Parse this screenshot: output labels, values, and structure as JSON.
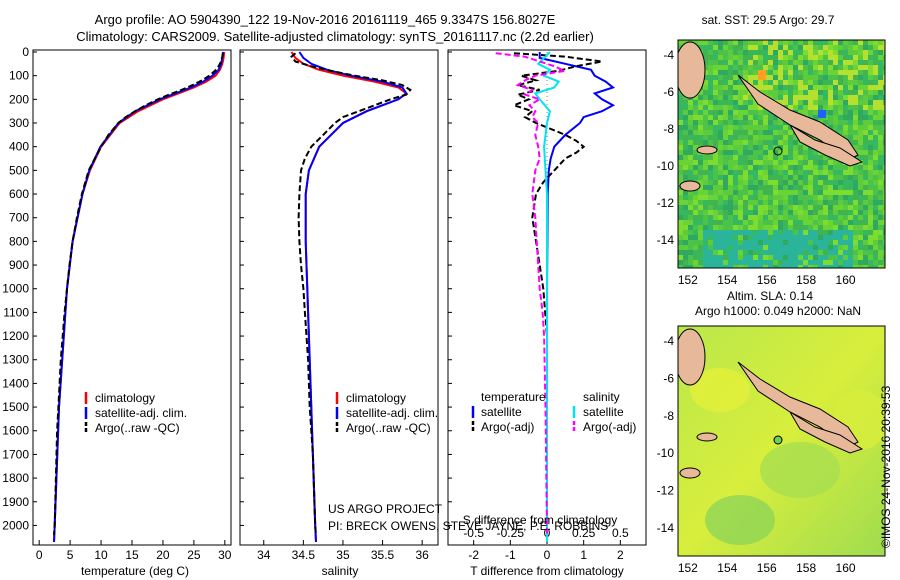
{
  "header": {
    "line1": "Argo profile: AO 5904390_122 19-Nov-2016 20161119_465 9.3347S 156.8027E",
    "line2": "Climatology: CARS2009. Satellite-adjusted climatology: synTS_20161117.nc (2.2d earlier)"
  },
  "credit": "©IMOS 24-Nov-2016 20:39:53",
  "project_text": {
    "line1": "US ARGO PROJECT",
    "line2": "PI: BRECK OWENS, STEVE JAYNE, P.E. ROBBINS"
  },
  "colors": {
    "climatology": "#ff0000",
    "satellite": "#0000ff",
    "argo": "#000000",
    "t_satellite": "#00e5ee",
    "argo_adj": "#ff00ff"
  },
  "chart_data": [
    {
      "type": "line",
      "panel": "temperature",
      "xlabel": "temperature (deg C)",
      "xlim": [
        -1,
        31
      ],
      "ylim": [
        2070,
        0
      ],
      "xticks": [
        0,
        5,
        10,
        15,
        20,
        25,
        30
      ],
      "yticks": [
        0,
        100,
        200,
        300,
        400,
        500,
        600,
        700,
        800,
        900,
        1000,
        1100,
        1200,
        1300,
        1400,
        1500,
        1600,
        1700,
        1800,
        1900,
        2000
      ],
      "legend": [
        "climatology",
        "satellite-adj. clim.",
        "Argo(..raw -QC)"
      ],
      "series": [
        {
          "name": "climatology",
          "depth": [
            0,
            25,
            50,
            75,
            100,
            125,
            150,
            175,
            200,
            250,
            300,
            400,
            500,
            600,
            800,
            1000,
            1500,
            2000,
            2070
          ],
          "values": [
            29.9,
            29.8,
            29.6,
            29.2,
            28.5,
            27.0,
            25.0,
            22.5,
            20.0,
            16.0,
            13.0,
            10.0,
            8.2,
            7.0,
            5.4,
            4.5,
            3.2,
            2.5,
            2.4
          ]
        },
        {
          "name": "satellite-adj. clim.",
          "depth": [
            0,
            25,
            50,
            75,
            100,
            125,
            150,
            175,
            200,
            250,
            300,
            400,
            500,
            600,
            800,
            1000,
            1500,
            2000,
            2070
          ],
          "values": [
            29.7,
            29.6,
            29.4,
            29.0,
            28.0,
            26.5,
            24.5,
            22.0,
            19.5,
            15.5,
            12.8,
            9.9,
            8.1,
            7.0,
            5.4,
            4.5,
            3.2,
            2.5,
            2.4
          ]
        },
        {
          "name": "Argo(..raw -QC)",
          "depth": [
            5,
            20,
            40,
            60,
            80,
            100,
            120,
            140,
            160,
            180,
            200,
            225,
            250,
            275,
            300,
            350,
            400,
            450,
            500,
            600,
            700,
            800,
            900,
            1000,
            1100,
            1200,
            1300,
            1400,
            1500,
            1600,
            1700,
            1800,
            1900,
            2000,
            2040
          ],
          "values": [
            29.7,
            29.6,
            29.4,
            29.0,
            28.4,
            27.5,
            26.3,
            24.8,
            23.0,
            21.0,
            19.2,
            17.2,
            15.5,
            14.0,
            12.8,
            11.2,
            10.0,
            9.0,
            8.0,
            6.9,
            6.1,
            5.4,
            4.9,
            4.5,
            4.1,
            3.8,
            3.5,
            3.3,
            3.1,
            2.9,
            2.8,
            2.7,
            2.6,
            2.5,
            2.4
          ]
        }
      ]
    },
    {
      "type": "line",
      "panel": "salinity",
      "xlabel": "salinity",
      "xlim": [
        33.7,
        36.2
      ],
      "ylim": [
        2070,
        0
      ],
      "xticks": [
        34,
        34.5,
        35,
        35.5,
        36
      ],
      "legend": [
        "climatology",
        "satellite-adj. clim.",
        "Argo(..raw -QC)"
      ],
      "series": [
        {
          "name": "climatology",
          "depth": [
            0,
            25,
            50,
            75,
            100,
            125,
            150,
            175,
            200,
            250,
            300,
            400,
            500,
            600,
            800,
            1000,
            1500,
            2000,
            2070
          ],
          "values": [
            34.35,
            34.4,
            34.5,
            34.7,
            35.0,
            35.4,
            35.7,
            35.8,
            35.7,
            35.3,
            35.0,
            34.7,
            34.57,
            34.53,
            34.53,
            34.55,
            34.6,
            34.65,
            34.66
          ]
        },
        {
          "name": "satellite-adj. clim.",
          "depth": [
            0,
            25,
            50,
            75,
            100,
            125,
            150,
            175,
            200,
            250,
            300,
            400,
            500,
            600,
            800,
            1000,
            1500,
            2000,
            2070
          ],
          "values": [
            34.45,
            34.5,
            34.6,
            34.8,
            35.1,
            35.5,
            35.75,
            35.8,
            35.7,
            35.3,
            35.0,
            34.7,
            34.57,
            34.53,
            34.53,
            34.55,
            34.6,
            34.65,
            34.66
          ]
        },
        {
          "name": "Argo(..raw -QC)",
          "depth": [
            5,
            20,
            40,
            60,
            80,
            100,
            120,
            140,
            160,
            180,
            200,
            225,
            250,
            275,
            300,
            350,
            400,
            450,
            500,
            600,
            700,
            800,
            900,
            1000,
            1100,
            1200,
            1300,
            1400,
            1500,
            1600,
            1700,
            1800,
            1900,
            2000,
            2040
          ],
          "values": [
            34.4,
            34.35,
            34.4,
            34.6,
            34.85,
            35.15,
            35.5,
            35.75,
            35.85,
            35.8,
            35.6,
            35.4,
            35.2,
            35.0,
            34.9,
            34.75,
            34.6,
            34.52,
            34.47,
            34.45,
            34.44,
            34.45,
            34.47,
            34.5,
            34.52,
            34.54,
            34.56,
            34.57,
            34.58,
            34.6,
            34.62,
            34.63,
            34.64,
            34.65,
            34.66
          ]
        }
      ]
    },
    {
      "type": "line",
      "panel": "difference",
      "xlabel": "T difference from climatology",
      "top_label": "S difference from climatology",
      "xlim": [
        -2.7,
        2.7
      ],
      "ylim": [
        2070,
        0
      ],
      "xticks": [
        -2,
        -1,
        0,
        1,
        2
      ],
      "top_ticks": [
        -0.5,
        -0.25,
        0,
        0.25,
        0.5
      ],
      "legend_temperature": {
        "title": "temperature",
        "entries": [
          "satellite",
          "Argo(-adj)"
        ]
      },
      "legend_salinity": {
        "title": "salinity",
        "entries": [
          "satellite",
          "Argo(-adj)"
        ]
      },
      "series": [
        {
          "name": "temperature satellite",
          "depth": [
            0,
            25,
            50,
            75,
            100,
            125,
            150,
            175,
            200,
            225,
            250,
            275,
            300,
            350,
            400,
            450,
            500,
            600,
            800,
            1000,
            1500,
            2070
          ],
          "values": [
            -0.2,
            -0.2,
            0.5,
            1.2,
            1.3,
            1.6,
            1.8,
            1.3,
            1.5,
            1.8,
            1.5,
            1.0,
            0.9,
            0.5,
            0.2,
            0.1,
            0.05,
            0.02,
            0.01,
            0.0,
            0.0,
            0.0
          ]
        },
        {
          "name": "temperature Argo(-adj)",
          "depth": [
            5,
            20,
            40,
            60,
            80,
            100,
            120,
            140,
            160,
            180,
            200,
            225,
            250,
            275,
            300,
            325,
            350,
            375,
            400,
            425,
            450,
            500,
            550,
            600,
            700,
            800,
            900,
            1000,
            1200,
            1500,
            2040
          ],
          "values": [
            -0.9,
            0.5,
            1.5,
            0.8,
            0.3,
            -0.7,
            -0.3,
            -0.8,
            -0.2,
            -0.8,
            -0.5,
            -0.9,
            -0.4,
            -0.6,
            -0.3,
            0.1,
            0.5,
            0.8,
            1.0,
            0.8,
            0.5,
            0.2,
            -0.1,
            -0.3,
            -0.4,
            -0.3,
            -0.2,
            -0.1,
            0.0,
            0.0,
            0.0
          ]
        },
        {
          "name": "salinity satellite",
          "depth": [
            0,
            25,
            50,
            75,
            100,
            125,
            150,
            175,
            200,
            250,
            300,
            400,
            500,
            600,
            800,
            1000,
            1500,
            2070
          ],
          "values": [
            0.02,
            -0.02,
            -0.06,
            0.02,
            -0.02,
            0.08,
            0.05,
            -0.08,
            -0.05,
            0.02,
            0.0,
            -0.02,
            -0.01,
            0.0,
            0.0,
            0.0,
            0.0,
            0.0
          ]
        },
        {
          "name": "salinity Argo(-adj)",
          "depth": [
            5,
            20,
            40,
            60,
            80,
            100,
            120,
            140,
            160,
            180,
            200,
            225,
            250,
            275,
            300,
            350,
            400,
            450,
            500,
            600,
            700,
            800,
            900,
            1000,
            1100,
            1200,
            1500,
            2040
          ],
          "values": [
            -0.35,
            -0.15,
            -0.05,
            0.05,
            0.12,
            -0.08,
            -0.15,
            -0.2,
            -0.1,
            -0.15,
            -0.05,
            -0.12,
            -0.08,
            -0.1,
            -0.06,
            -0.08,
            -0.06,
            -0.05,
            -0.08,
            -0.1,
            -0.08,
            -0.07,
            -0.06,
            -0.05,
            -0.03,
            -0.02,
            -0.01,
            0.0
          ]
        }
      ]
    },
    {
      "type": "heatmap",
      "panel": "sst_map",
      "title": "sat. SST: 29.5 Argo: 29.7",
      "xticks": [
        152,
        154,
        156,
        158,
        160
      ],
      "yticks": [
        -4,
        -6,
        -8,
        -10,
        -12,
        -14
      ],
      "xlim": [
        151.5,
        162
      ],
      "ylim": [
        -15.5,
        -3.2
      ],
      "float_position": {
        "lon": 156.8027,
        "lat": -9.3347
      }
    },
    {
      "type": "heatmap",
      "panel": "sla_map",
      "title_line1": "Altim. SLA: 0.14",
      "title_line2": "Argo h1000: 0.049 h2000: NaN",
      "xticks": [
        152,
        154,
        156,
        158,
        160
      ],
      "yticks": [
        -4,
        -6,
        -8,
        -10,
        -12,
        -14
      ],
      "xlim": [
        151.5,
        162
      ],
      "ylim": [
        -15.5,
        -3.2
      ],
      "float_position": {
        "lon": 156.8027,
        "lat": -9.3347
      }
    }
  ]
}
